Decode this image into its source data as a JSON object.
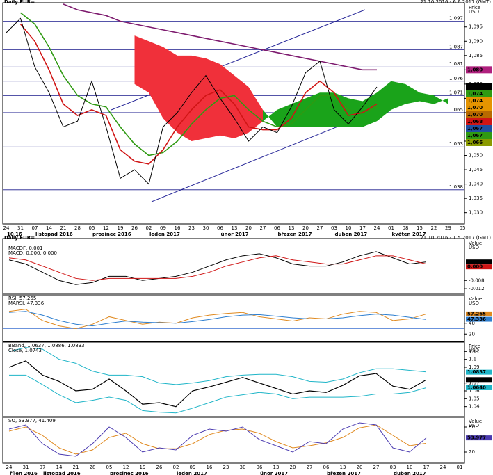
{
  "chart_data": [
    {
      "type": "line",
      "title": "Daily EUR=",
      "subtitle": "21.10.2016 - 6.6.2017 (GMT)",
      "y_axis_label": "Price",
      "y_axis_unit": "USD",
      "categories": [
        "24",
        "31",
        "07",
        "14",
        "21",
        "28",
        "05",
        "12",
        "19",
        "26",
        "02",
        "09",
        "16",
        "23",
        "30",
        "06",
        "13",
        "20",
        "27",
        "06",
        "13",
        "20",
        "27",
        "03",
        "10",
        "17",
        "24",
        "01",
        "08",
        "15",
        "22",
        "29",
        "05"
      ],
      "months": [
        {
          "label": "10 16",
          "start": 0
        },
        {
          "label": "listopad 2016",
          "start": 2
        },
        {
          "label": "prosinec 2016",
          "start": 6
        },
        {
          "label": "leden 2017",
          "start": 10
        },
        {
          "label": "únor 2017",
          "start": 15
        },
        {
          "label": "březen 2017",
          "start": 19
        },
        {
          "label": "duben 2017",
          "start": 23
        },
        {
          "label": "květen 2017",
          "start": 27
        }
      ],
      "ylim": [
        1.027,
        1.102
      ],
      "yticks": [
        {
          "value": 1.095,
          "label": "1,095"
        },
        {
          "value": 1.09,
          "label": "1,090"
        },
        {
          "value": 1.085,
          "label": "1,085"
        },
        {
          "value": 1.08,
          "label": "1,080"
        },
        {
          "value": 1.075,
          "label": "1,075"
        },
        {
          "value": 1.07,
          "label": "1,070"
        },
        {
          "value": 1.065,
          "label": "1,065"
        },
        {
          "value": 1.06,
          "label": "1,060"
        },
        {
          "value": 1.055,
          "label": "1,055"
        },
        {
          "value": 1.05,
          "label": "1,050"
        },
        {
          "value": 1.045,
          "label": "1,045"
        },
        {
          "value": 1.04,
          "label": "1,040"
        },
        {
          "value": 1.035,
          "label": "1,035"
        },
        {
          "value": 1.03,
          "label": "1,030"
        }
      ],
      "levels": [
        {
          "value": 1.097,
          "label": "1,097"
        },
        {
          "value": 1.087,
          "label": "1,087"
        },
        {
          "value": 1.081,
          "label": "1,081"
        },
        {
          "value": 1.076,
          "label": "1,076"
        },
        {
          "value": 1.071,
          "label": "1,071"
        },
        {
          "value": 1.065,
          "label": "1,065"
        },
        {
          "value": 1.053,
          "label": "1,053"
        },
        {
          "value": 1.038,
          "label": "1,038"
        }
      ],
      "level_color": "#1a1a8c",
      "cloud": {
        "up_color": "#1aa31a",
        "down_color": "#f0303a",
        "span_a": [
          null,
          null,
          null,
          null,
          null,
          null,
          null,
          null,
          null,
          1.075,
          1.072,
          1.063,
          1.058,
          1.055,
          1.056,
          1.057,
          1.056,
          1.058,
          1.062,
          1.066,
          1.068,
          1.07,
          1.072,
          1.072,
          1.07,
          1.069,
          1.072,
          1.076,
          1.075,
          1.072,
          1.071,
          1.068,
          null
        ],
        "span_b": [
          null,
          null,
          null,
          null,
          null,
          null,
          null,
          null,
          null,
          1.092,
          1.09,
          1.088,
          1.085,
          1.085,
          1.084,
          1.082,
          1.078,
          1.074,
          1.066,
          1.06,
          1.06,
          1.06,
          1.06,
          1.06,
          1.06,
          1.06,
          1.062,
          1.066,
          1.068,
          1.069,
          1.068,
          1.07,
          null
        ]
      },
      "series": [
        {
          "color": "#7d1a6e",
          "width": 1.6,
          "values": [
            null,
            null,
            null,
            null,
            1.103,
            1.101,
            1.1,
            1.099,
            1.097,
            1.096,
            1.095,
            1.094,
            1.093,
            1.092,
            1.091,
            1.09,
            1.089,
            1.088,
            1.087,
            1.086,
            1.085,
            1.084,
            1.083,
            1.082,
            1.081,
            1.08,
            1.08,
            null,
            null,
            null,
            null,
            null,
            null
          ]
        },
        {
          "color": "#2f9a12",
          "width": 1.6,
          "values": [
            null,
            1.1,
            1.096,
            1.088,
            1.078,
            1.071,
            1.068,
            1.067,
            1.06,
            1.054,
            1.05,
            1.051,
            1.055,
            1.061,
            1.066,
            1.07,
            1.071,
            1.066,
            1.062,
            1.06,
            1.061,
            1.066,
            1.071,
            1.071,
            1.066,
            1.065,
            1.067,
            null,
            null,
            null,
            null,
            null,
            null
          ]
        },
        {
          "color": "#d01515",
          "width": 1.6,
          "values": [
            null,
            1.096,
            1.09,
            1.08,
            1.068,
            1.064,
            1.066,
            1.064,
            1.052,
            1.048,
            1.047,
            1.052,
            1.06,
            1.066,
            1.071,
            1.073,
            1.068,
            1.06,
            1.059,
            1.059,
            1.063,
            1.072,
            1.076,
            1.072,
            1.064,
            1.065,
            1.068,
            null,
            null,
            null,
            null,
            null,
            null
          ]
        },
        {
          "color": "#000000",
          "width": 1,
          "values": [
            1.093,
            1.098,
            1.081,
            1.072,
            1.06,
            1.062,
            1.076,
            1.06,
            1.042,
            1.045,
            1.04,
            1.06,
            1.065,
            1.072,
            1.078,
            1.07,
            1.063,
            1.055,
            1.06,
            1.058,
            1.067,
            1.079,
            1.083,
            1.066,
            1.061,
            1.067,
            1.074,
            null,
            null,
            null,
            null,
            null,
            null
          ]
        }
      ],
      "tags": [
        {
          "value": 1.08,
          "label": "1,080",
          "color": "#b0207e"
        },
        {
          "value": 1.074,
          "label": "1,074",
          "color": "#000000"
        },
        {
          "value": 1.074,
          "label": "1,074",
          "color": "#2f9a12"
        },
        {
          "value": 1.074,
          "label": "1,074",
          "color": "#e59400"
        },
        {
          "value": 1.07,
          "label": "1,070",
          "color": "#e59400"
        },
        {
          "value": 1.07,
          "label": "1,070",
          "color": "#b86a00"
        },
        {
          "value": 1.068,
          "label": "1,068",
          "color": "#d01515"
        },
        {
          "value": 1.067,
          "label": "1,067",
          "color": "#1e4fa0"
        },
        {
          "value": 1.067,
          "label": "1,067",
          "color": "#2f9a12"
        },
        {
          "value": 1.066,
          "label": "1,066",
          "color": "#8a9a00"
        }
      ]
    },
    {
      "type": "line",
      "title": "Daily EUR=",
      "subtitle": "21.10.2016 - 1.5.2017 (GMT)",
      "y_axis_label": "Value",
      "y_axis_unit": "USD",
      "ylim": [
        -0.014,
        0.008
      ],
      "yticks": [
        -0.008,
        -0.012
      ],
      "zero_line": true,
      "series": [
        {
          "name": "MACDF, 0.001",
          "color": "#000000",
          "width": 1,
          "values": [
            0.002,
            0,
            -0.004,
            -0.008,
            -0.01,
            -0.009,
            -0.006,
            -0.006,
            -0.008,
            -0.007,
            -0.006,
            -0.004,
            -0.001,
            0.002,
            0.004,
            0.005,
            0.003,
            0,
            -0.001,
            -0.001,
            0.001,
            0.004,
            0.006,
            0.003,
            0,
            0.001,
            null,
            null
          ]
        },
        {
          "name": "MACD, 0.000, 0.000",
          "color": "#d01515",
          "width": 1,
          "values": [
            0.003,
            0.002,
            -0.001,
            -0.004,
            -0.007,
            -0.008,
            -0.007,
            -0.007,
            -0.007,
            -0.007,
            -0.007,
            -0.006,
            -0.004,
            -0.001,
            0.001,
            0.003,
            0.004,
            0.002,
            0.001,
            0,
            0,
            0.002,
            0.004,
            0.004,
            0.002,
            0,
            null,
            null
          ]
        }
      ],
      "tags": [
        {
          "value": 0.001,
          "label": "0.001",
          "color": "#000000"
        },
        {
          "value": 0,
          "label": "0.000",
          "color": "#d01515"
        }
      ]
    },
    {
      "type": "line",
      "y_axis_label": "Value",
      "y_axis_unit": "USD",
      "ylim": [
        10,
        90
      ],
      "yticks": [
        40,
        20
      ],
      "levels": [
        {
          "value": 70
        },
        {
          "value": 30
        }
      ],
      "level_color": "#3a6fd0",
      "series": [
        {
          "name": "RSI, 57.265",
          "color": "#e08a20",
          "width": 1,
          "values": [
            62,
            66,
            45,
            35,
            30,
            38,
            52,
            45,
            38,
            42,
            40,
            50,
            55,
            58,
            60,
            52,
            48,
            44,
            50,
            48,
            57,
            62,
            60,
            45,
            48,
            57,
            null,
            null
          ]
        },
        {
          "name": "MARSI, 47.336",
          "color": "#2e7fd0",
          "width": 1,
          "values": [
            60,
            62,
            55,
            45,
            38,
            35,
            40,
            44,
            42,
            41,
            40,
            43,
            47,
            52,
            55,
            56,
            53,
            50,
            48,
            48,
            50,
            54,
            57,
            55,
            51,
            47,
            null,
            null
          ]
        }
      ],
      "tags": [
        {
          "value": 57.265,
          "label": "57.265",
          "color": "#e08a20"
        },
        {
          "value": 47.336,
          "label": "47.336",
          "color": "#2e7fd0"
        }
      ]
    },
    {
      "type": "line",
      "y_axis_label": "Price",
      "y_axis_unit": "USD",
      "ylim": [
        1.03,
        1.12
      ],
      "yticks": [
        1.11,
        1.1,
        1.09,
        1.07,
        1.06,
        1.05,
        1.04
      ],
      "series": [
        {
          "name": "BBand, 1.0637, 1.0886, 1.0833",
          "color": "#1fb5c8",
          "width": 1,
          "values": [
            1.11,
            1.115,
            1.113,
            1.1,
            1.095,
            1.085,
            1.08,
            1.08,
            1.078,
            1.07,
            1.068,
            1.07,
            1.073,
            1.078,
            1.08,
            1.081,
            1.081,
            1.078,
            1.072,
            1.071,
            1.075,
            1.083,
            1.088,
            1.088,
            1.086,
            1.084,
            null,
            null
          ]
        },
        {
          "color": "#1fb5c8",
          "width": 1,
          "values": [
            1.08,
            1.08,
            1.068,
            1.055,
            1.045,
            1.048,
            1.052,
            1.048,
            1.035,
            1.033,
            1.032,
            1.038,
            1.045,
            1.052,
            1.055,
            1.058,
            1.056,
            1.05,
            1.052,
            1.052,
            1.052,
            1.053,
            1.056,
            1.056,
            1.058,
            1.064,
            null,
            null
          ]
        },
        {
          "name": "Close, 1.0743",
          "color": "#000000",
          "width": 1.2,
          "values": [
            1.09,
            1.098,
            1.08,
            1.072,
            1.06,
            1.062,
            1.075,
            1.06,
            1.043,
            1.045,
            1.04,
            1.06,
            1.065,
            1.071,
            1.077,
            1.07,
            1.063,
            1.056,
            1.06,
            1.058,
            1.067,
            1.079,
            1.082,
            1.066,
            1.062,
            1.074,
            null,
            null
          ]
        }
      ],
      "tags": [
        {
          "value": 1.0837,
          "label": "1.0837",
          "color": "#1fb5c8"
        },
        {
          "value": 1.0743,
          "label": "1.0743",
          "color": "#000000"
        },
        {
          "value": 1.064,
          "label": "1.0640",
          "color": "#1fb5c8"
        }
      ]
    },
    {
      "type": "line",
      "y_axis_label": "Value",
      "y_axis_unit": "USD",
      "ylim": [
        0,
        100
      ],
      "yticks": [
        80,
        20
      ],
      "categories": [
        "24",
        "31",
        "07",
        "14",
        "21",
        "28",
        "05",
        "12",
        "19",
        "26",
        "02",
        "09",
        "16",
        "23",
        "30",
        "06",
        "13",
        "20",
        "27",
        "06",
        "13",
        "20",
        "27",
        "03",
        "10",
        "17",
        "24",
        "01"
      ],
      "months": [
        {
          "label": "říjen 2016",
          "start": 0
        },
        {
          "label": "listopad 2016",
          "start": 2
        },
        {
          "label": "prosinec 2016",
          "start": 6
        },
        {
          "label": "leden 2017",
          "start": 10
        },
        {
          "label": "únor 2017",
          "start": 15
        },
        {
          "label": "březen 2017",
          "start": 19
        },
        {
          "label": "duben 2017",
          "start": 23
        }
      ],
      "series": [
        {
          "name": "SO, 53.977, 41.409",
          "color": "#e08a20",
          "width": 1,
          "values": [
            70,
            80,
            60,
            30,
            15,
            25,
            55,
            65,
            40,
            28,
            28,
            40,
            62,
            72,
            75,
            65,
            45,
            30,
            35,
            42,
            55,
            78,
            85,
            60,
            35,
            41,
            null,
            null
          ]
        },
        {
          "color": "#4a3ab0",
          "width": 1,
          "values": [
            75,
            85,
            40,
            15,
            10,
            40,
            80,
            55,
            20,
            30,
            25,
            60,
            75,
            70,
            80,
            50,
            35,
            20,
            45,
            40,
            75,
            90,
            85,
            30,
            20,
            54,
            null,
            null
          ]
        }
      ],
      "tags": [
        {
          "value": 53.977,
          "label": "53.977",
          "color": "#4a3ab0"
        }
      ]
    }
  ]
}
